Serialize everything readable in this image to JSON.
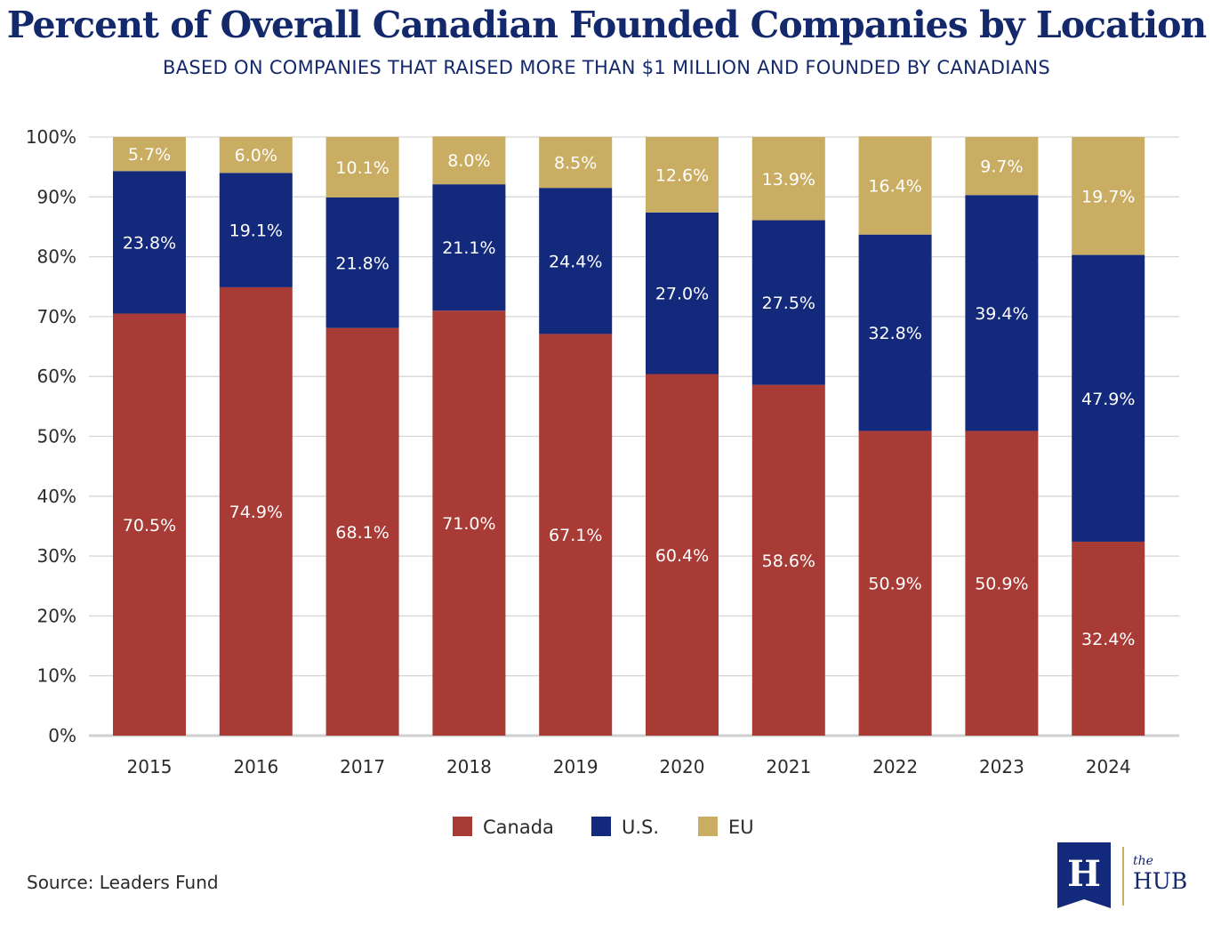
{
  "header": {
    "title": "Percent of Overall Canadian Founded Companies by Location",
    "subtitle": "BASED ON COMPANIES THAT RAISED MORE THAN $1 MILLION AND FOUNDED BY CANADIANS"
  },
  "footer": {
    "source": "Source: Leaders Fund"
  },
  "logo": {
    "mark": "H",
    "the": "the",
    "name": "HUB"
  },
  "colors": {
    "canada": "#a93b36",
    "us": "#13297b",
    "eu": "#c9ad63",
    "text_dark": "#2b2b2b",
    "title": "#14296b",
    "grid": "#d6d6d6"
  },
  "chart_data": {
    "type": "bar",
    "stacked": true,
    "categories": [
      "2015",
      "2016",
      "2017",
      "2018",
      "2019",
      "2020",
      "2021",
      "2022",
      "2023",
      "2024"
    ],
    "series": [
      {
        "name": "Canada",
        "color_key": "canada",
        "values": [
          70.5,
          74.9,
          68.1,
          71.0,
          67.1,
          60.4,
          58.6,
          50.9,
          50.9,
          32.4
        ],
        "labels": [
          "70.5%",
          "74.9%",
          "68.1%",
          "71.0%",
          "67.1%",
          "60.4%",
          "58.6%",
          "50.9%",
          "50.9%",
          "32.4%"
        ]
      },
      {
        "name": "U.S.",
        "color_key": "us",
        "values": [
          23.8,
          19.1,
          21.8,
          21.1,
          24.4,
          27.0,
          27.5,
          32.8,
          39.4,
          47.9
        ],
        "labels": [
          "23.8%",
          "19.1%",
          "21.8%",
          "21.1%",
          "24.4%",
          "27.0%",
          "27.5%",
          "32.8%",
          "39.4%",
          "47.9%"
        ]
      },
      {
        "name": "EU",
        "color_key": "eu",
        "values": [
          5.7,
          6.0,
          10.1,
          8.0,
          8.5,
          12.6,
          13.9,
          16.4,
          9.7,
          19.7
        ],
        "labels": [
          "5.7%",
          "6.0%",
          "10.1%",
          "8.0%",
          "8.5%",
          "12.6%",
          "13.9%",
          "16.4%",
          "9.7%",
          "19.7%"
        ]
      }
    ],
    "yticks": [
      {
        "value": 0,
        "label": "0%"
      },
      {
        "value": 10,
        "label": "10%"
      },
      {
        "value": 20,
        "label": "20%"
      },
      {
        "value": 30,
        "label": "30%"
      },
      {
        "value": 40,
        "label": "40%"
      },
      {
        "value": 50,
        "label": "50%"
      },
      {
        "value": 60,
        "label": "60%"
      },
      {
        "value": 70,
        "label": "70%"
      },
      {
        "value": 80,
        "label": "80%"
      },
      {
        "value": 90,
        "label": "90%"
      },
      {
        "value": 100,
        "label": "100%"
      }
    ],
    "ylim": [
      0,
      100
    ],
    "grid": true,
    "legend": "bottom-center"
  }
}
